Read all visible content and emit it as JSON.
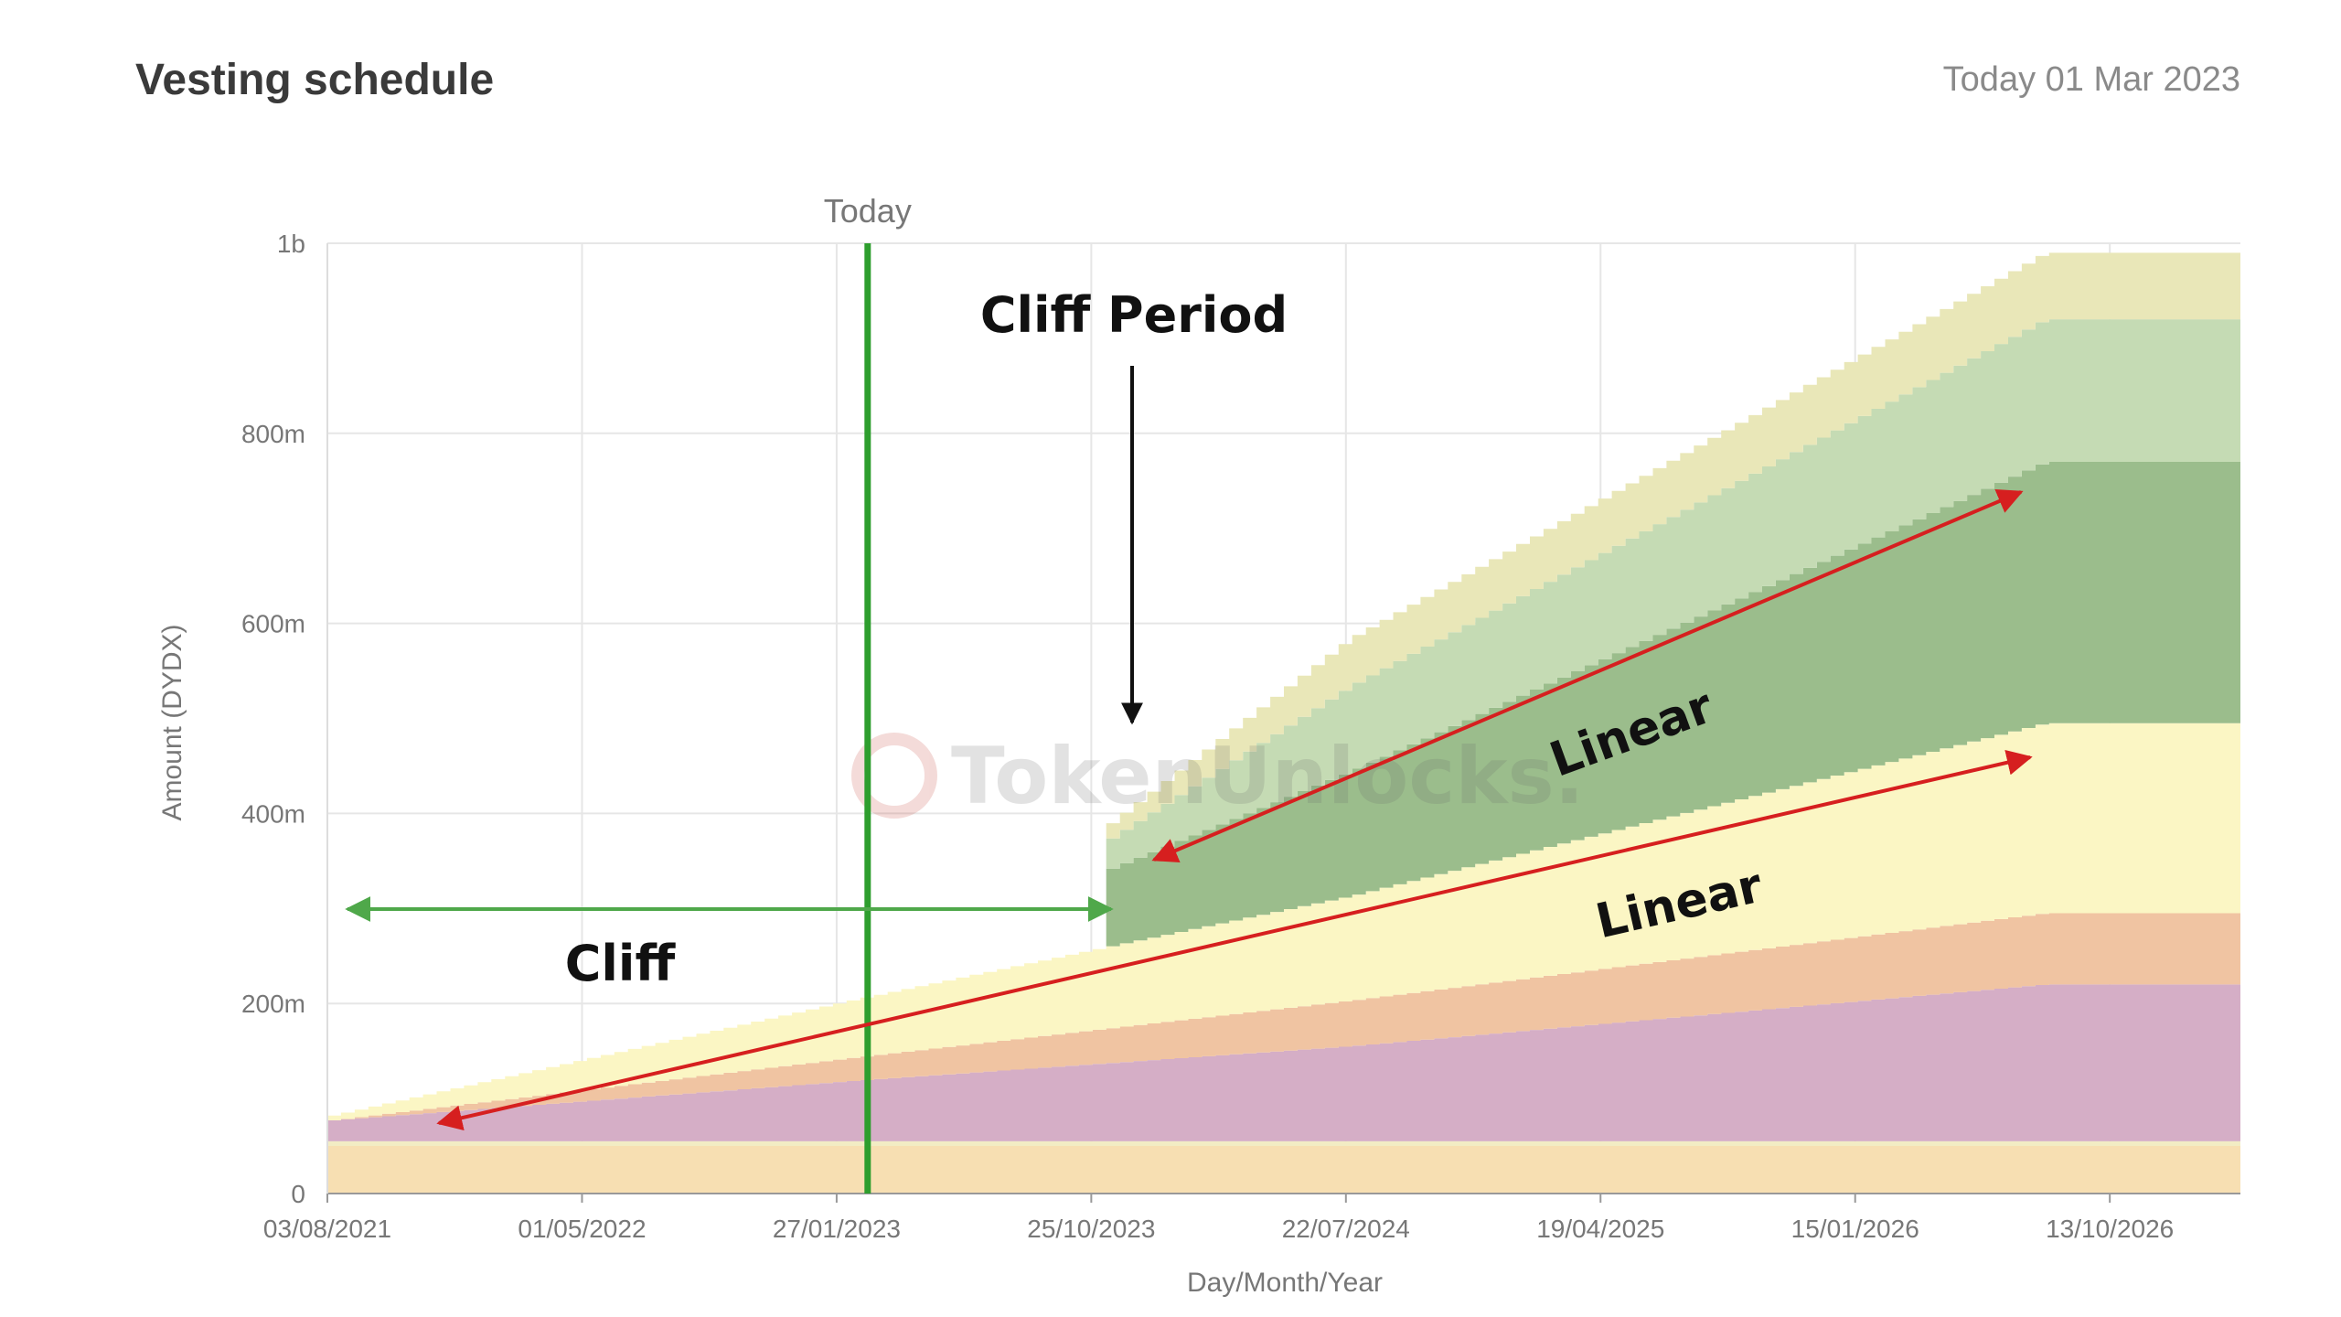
{
  "header": {
    "title": "Vesting schedule",
    "today": "Today 01 Mar 2023"
  },
  "chart_data": {
    "type": "area",
    "stacked": true,
    "xlabel": "Day/Month/Year",
    "ylabel": "Amount (DYDX)",
    "x_ticks": [
      "03/08/2021",
      "01/05/2022",
      "27/01/2023",
      "25/10/2023",
      "22/07/2024",
      "19/04/2025",
      "15/01/2026",
      "13/10/2026"
    ],
    "x_range": [
      "2021-08-03",
      "2027-03-01"
    ],
    "y_ticks": [
      "0",
      "200m",
      "400m",
      "600m",
      "800m",
      "1b"
    ],
    "ylim": [
      0,
      1000000000
    ],
    "grid": true,
    "today_marker": {
      "label": "Today",
      "date": "2023-03-01",
      "color": "#2e9e2e"
    },
    "series": [
      {
        "color": "#f7dfb2",
        "points": [
          [
            "2021-08-03",
            50000000
          ],
          [
            "2027-03-01",
            50000000
          ]
        ]
      },
      {
        "color": "#f2ecc4",
        "points": [
          [
            "2021-08-03",
            5000000
          ],
          [
            "2027-03-01",
            5000000
          ]
        ]
      },
      {
        "color": "#d5aec6",
        "points": [
          [
            "2021-08-03",
            22000000
          ],
          [
            "2023-02-01",
            63000000
          ],
          [
            "2024-07-22",
            100000000
          ],
          [
            "2026-08-01",
            165000000
          ],
          [
            "2027-03-01",
            165000000
          ]
        ]
      },
      {
        "color": "#f0c4a2",
        "points": [
          [
            "2021-08-03",
            0
          ],
          [
            "2023-02-01",
            24000000
          ],
          [
            "2024-07-22",
            48000000
          ],
          [
            "2026-08-01",
            75000000
          ],
          [
            "2027-03-01",
            75000000
          ]
        ]
      },
      {
        "color": "#fbf6c4",
        "points": [
          [
            "2021-08-03",
            5000000
          ],
          [
            "2023-02-01",
            60000000
          ],
          [
            "2024-07-22",
            110000000
          ],
          [
            "2026-08-01",
            200000000
          ],
          [
            "2027-03-01",
            200000000
          ]
        ]
      },
      {
        "color": "#9bbd8c",
        "points": [
          [
            "2023-11-01",
            0
          ],
          [
            "2023-11-02",
            80000000
          ],
          [
            "2026-08-01",
            275000000
          ],
          [
            "2027-03-01",
            275000000
          ]
        ]
      },
      {
        "color": "#c5dbb4",
        "points": [
          [
            "2023-11-01",
            0
          ],
          [
            "2023-11-02",
            30000000
          ],
          [
            "2024-07-22",
            90000000
          ],
          [
            "2026-08-01",
            150000000
          ],
          [
            "2027-03-01",
            150000000
          ]
        ]
      },
      {
        "color": "#e9e7b8",
        "points": [
          [
            "2023-11-01",
            0
          ],
          [
            "2023-11-02",
            15000000
          ],
          [
            "2024-07-22",
            50000000
          ],
          [
            "2026-08-01",
            70000000
          ],
          [
            "2027-03-01",
            70000000
          ]
        ]
      }
    ],
    "annotations": [
      {
        "id": "cliff-period",
        "text": "Cliff Period"
      },
      {
        "id": "cliff",
        "text": "Cliff"
      },
      {
        "id": "linear-upper",
        "text": "Linear"
      },
      {
        "id": "linear-lower",
        "text": "Linear"
      }
    ],
    "watermark": "TokenUnlocks."
  }
}
